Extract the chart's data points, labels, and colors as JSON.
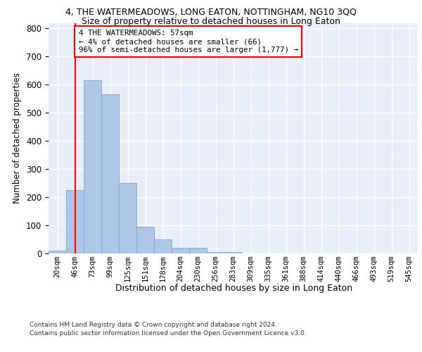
{
  "title": "4, THE WATERMEADOWS, LONG EATON, NOTTINGHAM, NG10 3QQ",
  "subtitle": "Size of property relative to detached houses in Long Eaton",
  "xlabel": "Distribution of detached houses by size in Long Eaton",
  "ylabel": "Number of detached properties",
  "bin_labels": [
    "20sqm",
    "46sqm",
    "73sqm",
    "99sqm",
    "125sqm",
    "151sqm",
    "178sqm",
    "204sqm",
    "230sqm",
    "256sqm",
    "283sqm",
    "309sqm",
    "335sqm",
    "361sqm",
    "388sqm",
    "414sqm",
    "440sqm",
    "466sqm",
    "493sqm",
    "519sqm",
    "545sqm"
  ],
  "bar_values": [
    10,
    225,
    615,
    565,
    250,
    95,
    50,
    20,
    20,
    5,
    5,
    0,
    0,
    0,
    0,
    0,
    0,
    0,
    0,
    0,
    0
  ],
  "bar_color": "#aec6e8",
  "bar_edge_color": "#7ba8d4",
  "property_bin_index": 1,
  "annotation_text": "4 THE WATERMEADOWS: 57sqm\n← 4% of detached houses are smaller (66)\n96% of semi-detached houses are larger (1,777) →",
  "annotation_box_color": "white",
  "annotation_box_edge_color": "red",
  "vline_color": "red",
  "ylim": [
    0,
    820
  ],
  "yticks": [
    0,
    100,
    200,
    300,
    400,
    500,
    600,
    700,
    800
  ],
  "background_color": "#e8eef7",
  "grid_color": "white",
  "footer_line1": "Contains HM Land Registry data © Crown copyright and database right 2024.",
  "footer_line2": "Contains public sector information licensed under the Open Government Licence v3.0."
}
